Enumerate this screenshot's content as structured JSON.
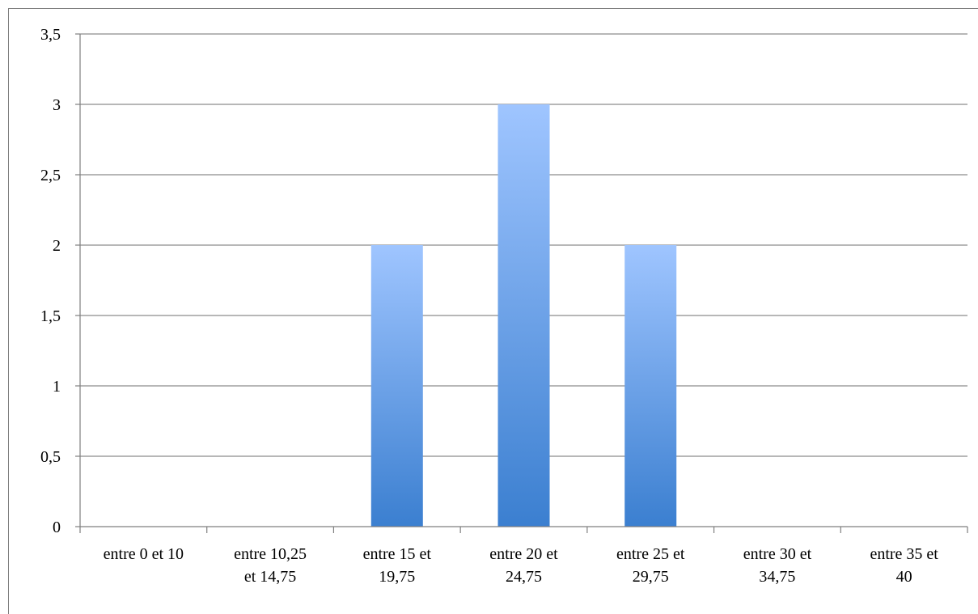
{
  "chart_data": {
    "type": "bar",
    "title": "",
    "xlabel": "",
    "ylabel": "",
    "categories": [
      [
        "entre 0 et 10"
      ],
      [
        "entre 10,25",
        "et 14,75"
      ],
      [
        "entre 15 et",
        "19,75"
      ],
      [
        "entre 20 et",
        "24,75"
      ],
      [
        "entre 25 et",
        "29,75"
      ],
      [
        "entre 30 et",
        "34,75"
      ],
      [
        "entre 35 et",
        "40"
      ]
    ],
    "values": [
      0,
      0,
      2,
      3,
      2,
      0,
      0
    ],
    "ylim": [
      0,
      3.5
    ],
    "yticks": [
      "0",
      "0,5",
      "1",
      "1,5",
      "2",
      "2,5",
      "3",
      "3,5"
    ],
    "ytick_values": [
      0,
      0.5,
      1,
      1.5,
      2,
      2.5,
      3,
      3.5
    ],
    "grid": true,
    "legend": "none",
    "bar_color_top": "#9fc5ff",
    "bar_color_bottom": "#3b7fd0",
    "grid_color": "#8c8c8c",
    "axis_color": "#7f7f7f"
  }
}
